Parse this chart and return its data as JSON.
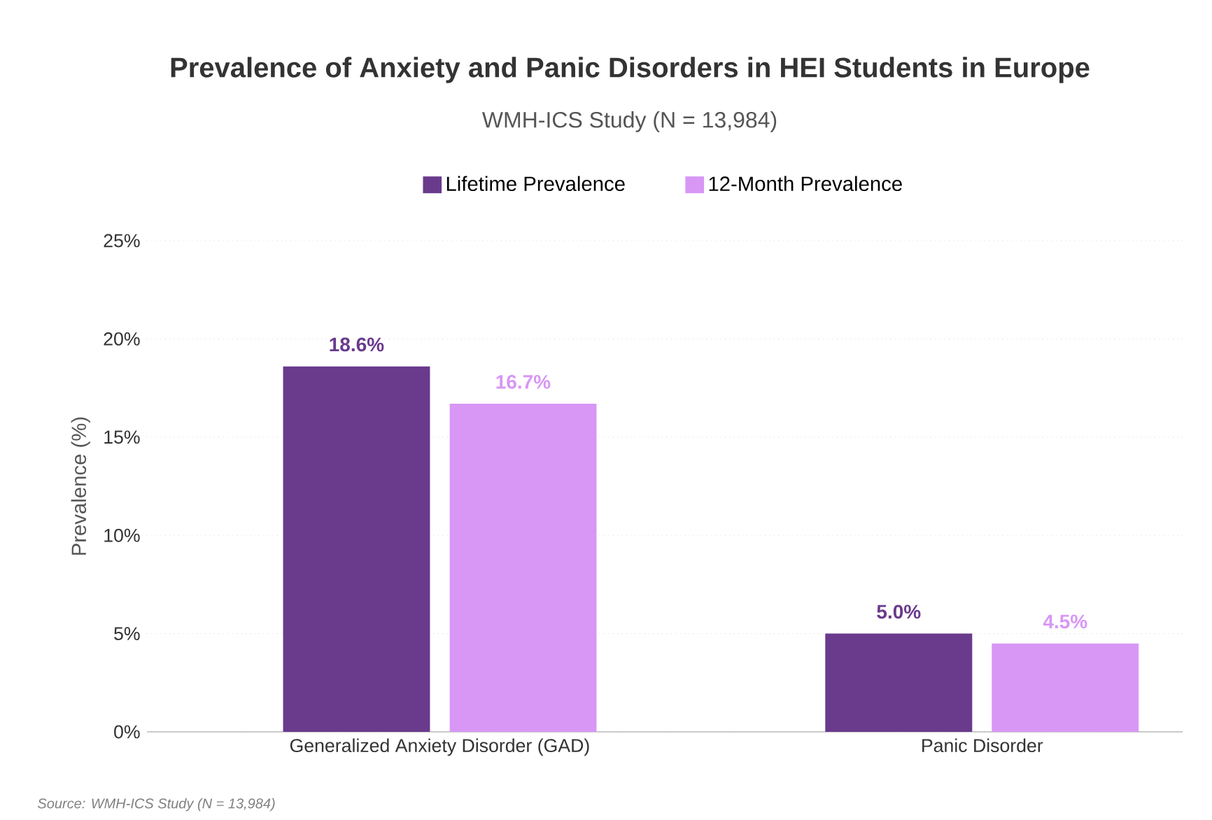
{
  "chart_data": {
    "type": "bar",
    "title": "Prevalence of Anxiety and Panic Disorders in HEI Students in Europe",
    "subtitle": "WMH-ICS Study (N = 13,984)",
    "ylabel": "Prevalence (%)",
    "categories": [
      "Generalized Anxiety Disorder (GAD)",
      "Panic Disorder"
    ],
    "series": [
      {
        "name": "Lifetime Prevalence",
        "color": "#6a3a8c",
        "values": [
          18.6,
          5.0
        ],
        "value_labels": [
          "18.6%",
          "5.0%"
        ]
      },
      {
        "name": "12-Month Prevalence",
        "color": "#d896f5",
        "values": [
          16.7,
          4.5
        ],
        "value_labels": [
          "16.7%",
          "4.5%"
        ]
      }
    ],
    "ylim": [
      0,
      25
    ],
    "yticks": [
      {
        "value": 0,
        "label": "0%"
      },
      {
        "value": 5,
        "label": "5%"
      },
      {
        "value": 10,
        "label": "10%"
      },
      {
        "value": 15,
        "label": "15%"
      },
      {
        "value": 20,
        "label": "20%"
      },
      {
        "value": 25,
        "label": "25%"
      }
    ],
    "grid": "y",
    "legend": "top",
    "annotations": [
      "Source: WMH-ICS Study (N = 13,984)"
    ]
  }
}
